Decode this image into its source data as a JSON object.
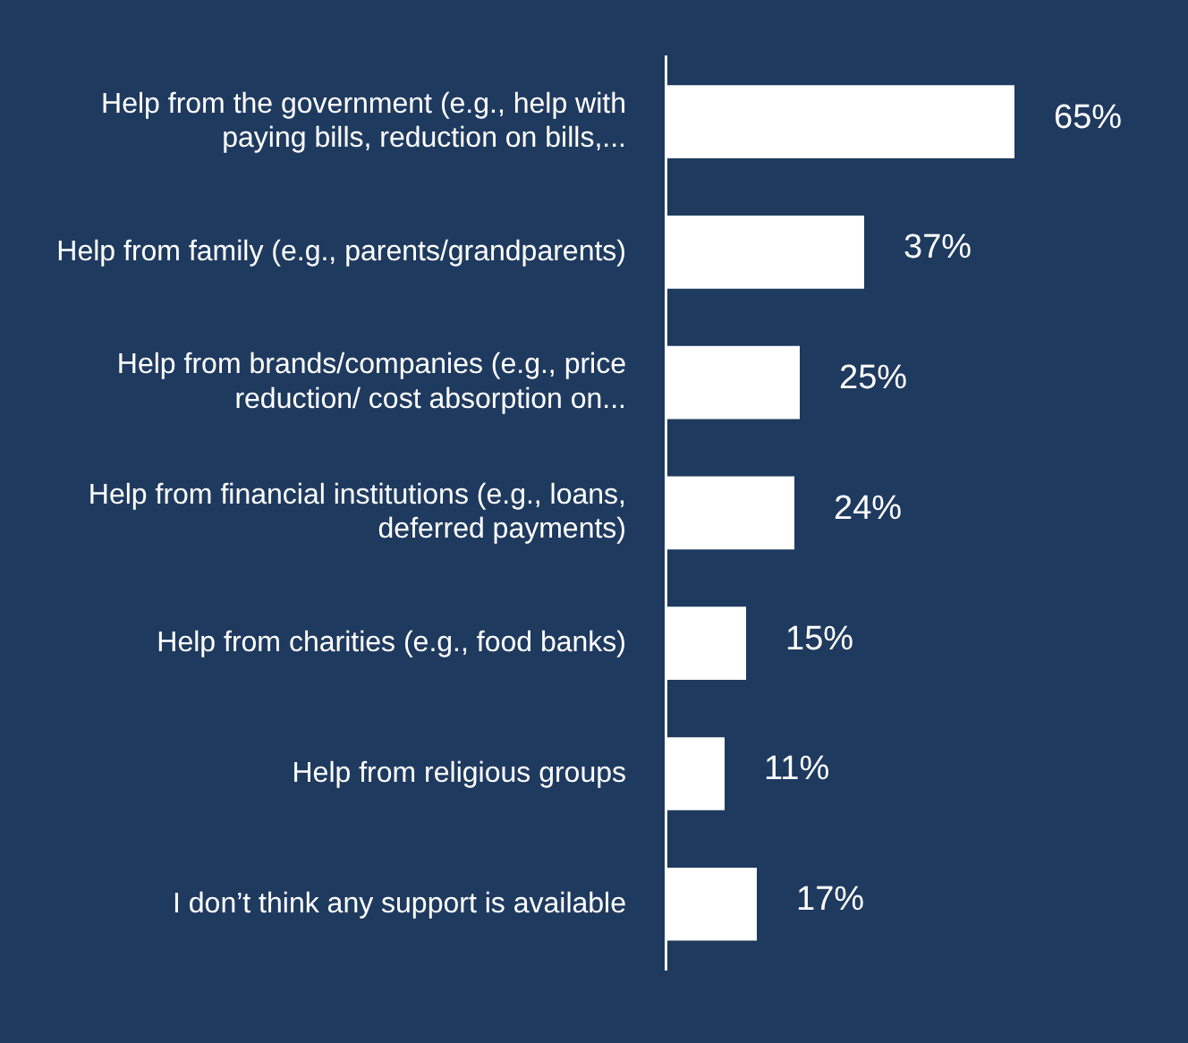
{
  "chart_data": {
    "type": "bar",
    "orientation": "horizontal",
    "categories": [
      "Help from the government (e.g., help with paying bills, reduction on bills,...",
      "Help from family (e.g., parents/grandparents)",
      "Help from brands/companies (e.g., price reduction/ cost absorption on...",
      "Help from financial institutions (e.g., loans, deferred payments)",
      "Help from charities (e.g., food banks)",
      "Help from religious groups",
      "I don’t think any support is available"
    ],
    "values": [
      65,
      37,
      25,
      24,
      15,
      11,
      17
    ],
    "value_labels": [
      "65%",
      "37%",
      "25%",
      "24%",
      "15%",
      "11%",
      "17%"
    ],
    "color": "#ffffff",
    "tick_labels": "y",
    "grid": false,
    "legend": false
  }
}
